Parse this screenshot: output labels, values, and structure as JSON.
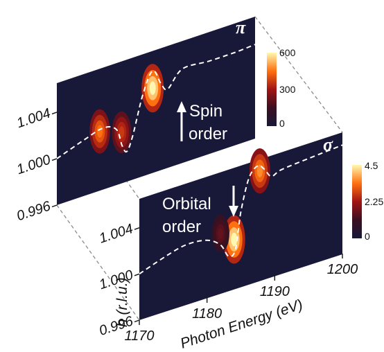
{
  "chart_data": [
    {
      "type": "heatmap",
      "panel": "pi",
      "label": "π",
      "annotation": [
        "Spin",
        "order"
      ],
      "xlim": [
        1170,
        1200
      ],
      "ylim": [
        0.996,
        1.0065
      ],
      "yticks": [
        "0.996",
        "1.000",
        "1.004"
      ],
      "colorbar": {
        "min": 0,
        "max": 600,
        "ticks": [
          "0",
          "300",
          "600"
        ]
      },
      "peaks": [
        {
          "x": 1176.5,
          "y": 1.0011,
          "amp": 0.75
        },
        {
          "x": 1179.8,
          "y": 1.0004,
          "amp": 0.6
        },
        {
          "x": 1184.5,
          "y": 1.0033,
          "amp": 1.0
        }
      ],
      "trace": [
        [
          1170,
          1.0
        ],
        [
          1174,
          1.0008
        ],
        [
          1177,
          1.0013
        ],
        [
          1179,
          1.0008
        ],
        [
          1179.9,
          0.9992
        ],
        [
          1180.6,
          0.9986
        ],
        [
          1181.5,
          0.9998
        ],
        [
          1183,
          1.003
        ],
        [
          1184.5,
          1.0048
        ],
        [
          1185.8,
          1.0034
        ],
        [
          1186.8,
          1.0028
        ],
        [
          1189,
          1.0041
        ],
        [
          1193,
          1.004
        ],
        [
          1197,
          1.004
        ],
        [
          1200,
          1.0041
        ]
      ]
    },
    {
      "type": "heatmap",
      "panel": "sigma",
      "label": "σ",
      "annotation": [
        "Orbital",
        "order"
      ],
      "xlabel": "Photon Energy (eV)",
      "ylabel": "h (r.l.u.)",
      "xlim": [
        1170,
        1200
      ],
      "xticks": [
        "1170",
        "1180",
        "1190",
        "1200"
      ],
      "ylim": [
        0.996,
        1.0065
      ],
      "yticks": [
        "0.996",
        "1.000",
        "1.004"
      ],
      "colorbar": {
        "min": 0,
        "max": 4.5,
        "ticks": [
          "0",
          "2.25",
          "4.5"
        ]
      },
      "peaks": [
        {
          "x": 1184.0,
          "y": 1.0003,
          "amp": 1.0
        },
        {
          "x": 1182.0,
          "y": 1.0012,
          "amp": 0.35
        },
        {
          "x": 1187.8,
          "y": 1.0055,
          "amp": 0.8
        }
      ],
      "trace": [
        [
          1170,
          1.0
        ],
        [
          1174,
          1.0008
        ],
        [
          1177,
          1.0012
        ],
        [
          1180,
          1.001
        ],
        [
          1182,
          1.0002
        ],
        [
          1183.2,
          0.999
        ],
        [
          1184.2,
          0.9994
        ],
        [
          1185,
          1.0025
        ],
        [
          1186.2,
          1.0052
        ],
        [
          1187.5,
          1.006
        ],
        [
          1188.5,
          1.0055
        ],
        [
          1189.5,
          1.0047
        ],
        [
          1191,
          1.005
        ],
        [
          1195,
          1.0052
        ],
        [
          1200,
          1.0054
        ]
      ]
    }
  ]
}
